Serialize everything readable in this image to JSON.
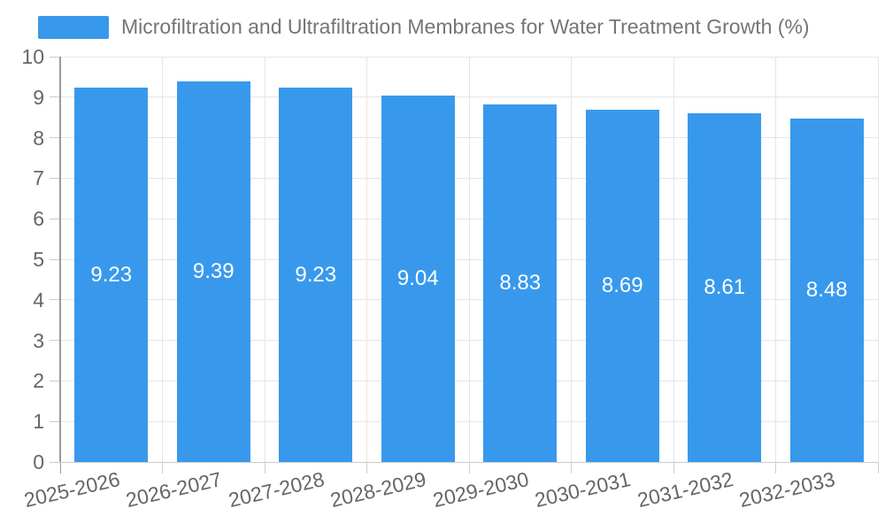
{
  "chart_data": {
    "type": "bar",
    "title": "Microfiltration and Ultrafiltration Membranes for Water Treatment Growth (%)",
    "categories": [
      "2025-2026",
      "2026-2027",
      "2027-2028",
      "2028-2029",
      "2029-2030",
      "2030-2031",
      "2031-2032",
      "2032-2033"
    ],
    "values": [
      9.23,
      9.39,
      9.23,
      9.04,
      8.83,
      8.69,
      8.61,
      8.48
    ],
    "value_labels": [
      "9.23",
      "9.39",
      "9.23",
      "9.04",
      "8.83",
      "8.69",
      "8.61",
      "8.48"
    ],
    "xlabel": "",
    "ylabel": "",
    "ylim": [
      0,
      10
    ],
    "y_ticks": [
      0,
      1,
      2,
      3,
      4,
      5,
      6,
      7,
      8,
      9,
      10
    ],
    "grid": true,
    "legend_position": "top-left",
    "colors": {
      "bar": "#3899EC",
      "title": "#757575",
      "axis_label": "#666666",
      "grid": "#e5e5e5",
      "axis_line": "#999999",
      "tick": "#cccccc",
      "value_label": "#ffffff"
    }
  }
}
